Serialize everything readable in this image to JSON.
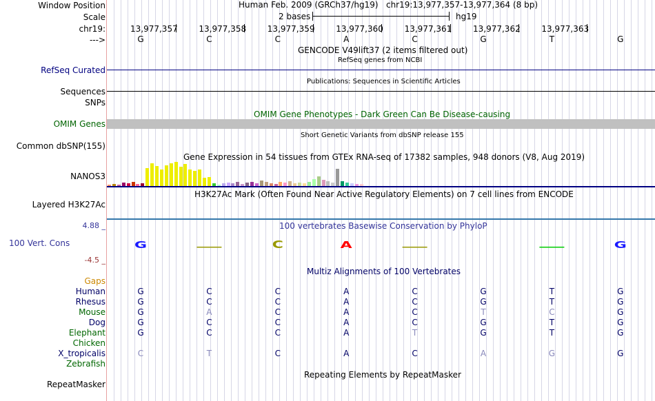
{
  "header": {
    "window_position_label": "Window Position",
    "scale_label": "Scale",
    "chrom_label": "chr19:",
    "strand_label": "--->",
    "assembly": "Human Feb. 2009 (GRCh37/hg19)",
    "position": "chr19:13,977,357-13,977,364 (8 bp)",
    "scale_text": "2 bases",
    "db": "hg19"
  },
  "ruler": {
    "coords": [
      "13,977,357",
      "13,977,358",
      "13,977,359",
      "13,977,360",
      "13,977,361",
      "13,977,362",
      "13,977,363"
    ]
  },
  "sequence": [
    "G",
    "C",
    "C",
    "A",
    "C",
    "G",
    "T",
    "G"
  ],
  "tracks": {
    "gencode": "GENCODE V49lift37 (2 items filtered out)",
    "refseq_title": "RefSeq genes from NCBI",
    "refseq_label": "RefSeq Curated",
    "publications_title": "Publications: Sequences in Scientific Articles",
    "sequences_label": "Sequences",
    "snps_label": "SNPs",
    "omim_title": "OMIM Gene Phenotypes - Dark Green Can Be Disease-causing",
    "omim_label": "OMIM Genes",
    "dbsnp_title": "Short Genetic Variants from dbSNP release 155",
    "dbsnp_label": "Common dbSNP(155)",
    "gtex_title": "Gene Expression in 54 tissues from GTEx RNA-seq of 17382 samples, 948 donors (V8, Aug 2019)",
    "gtex_label": "NANOS3",
    "h3k27ac_title": "H3K27Ac Mark (Often Found Near Active Regulatory Elements) on 7 cell lines from ENCODE",
    "h3k27ac_label": "Layered H3K27Ac",
    "phylop_title": "100 vertebrates Basewise Conservation by PhyloP",
    "phylop_label": "100 Vert. Cons",
    "phylop_max": "4.88 _",
    "phylop_min": "-4.5 _",
    "multiz_title": "Multiz Alignments of 100 Vertebrates",
    "gaps_label": "Gaps",
    "repeat_title": "Repeating Elements by RepeatMasker",
    "repeat_label": "RepeatMasker"
  },
  "gtex_values": [
    2,
    3,
    2,
    5,
    4,
    6,
    3,
    4,
    26,
    33,
    29,
    24,
    30,
    33,
    35,
    28,
    32,
    24,
    22,
    24,
    12,
    13,
    4,
    2,
    4,
    5,
    4,
    6,
    3,
    5,
    6,
    4,
    8,
    6,
    4,
    3,
    6,
    5,
    7,
    4,
    5,
    4,
    6,
    10,
    14,
    9,
    7,
    5,
    25,
    7,
    5,
    4,
    3,
    3
  ],
  "gtex_colors": [
    "#ff9966",
    "#b8860b",
    "#cc6699",
    "#990066",
    "#cc0044",
    "#cc3300",
    "#ff6699",
    "#990033",
    "#eeee00",
    "#eeee00",
    "#eeee00",
    "#eeee00",
    "#eeee00",
    "#eeee00",
    "#eeee00",
    "#eeee00",
    "#eeee00",
    "#eeee00",
    "#eeee00",
    "#eeee00",
    "#eeee00",
    "#eeee00",
    "#33cc33",
    "#aaffcc",
    "#bbaaee",
    "#ccaaff",
    "#aa88cc",
    "#996699",
    "#cc99cc",
    "#886688",
    "#993399",
    "#cc66cc",
    "#aa9977",
    "#c0a080",
    "#dd8866",
    "#cc6699",
    "#ffaa66",
    "#ff99cc",
    "#d2b48c",
    "#eecc99",
    "#ccdd99",
    "#ffdd99",
    "#99ee99",
    "#aaffaa",
    "#aacc88",
    "#dd99bb",
    "#bbbbbb",
    "#cccccc",
    "#999999",
    "#009966",
    "#33cc99",
    "#ccccff",
    "#ee99dd",
    "#ffcccc"
  ],
  "phylop": {
    "bases": [
      "G",
      "",
      "C",
      "A",
      "",
      "",
      "",
      "G"
    ],
    "colors": [
      "#1a1aff",
      "#999900",
      "#999900",
      "#ff0000",
      "#999900",
      "",
      "#00cc00",
      "#1a1aff"
    ],
    "scores": [
      0.6,
      0.1,
      0.7,
      0.6,
      0.1,
      0.0,
      0.2,
      0.6
    ]
  },
  "species": [
    {
      "name": "Human",
      "color": "#000066",
      "seq": [
        "G",
        "C",
        "C",
        "A",
        "C",
        "G",
        "T",
        "G"
      ],
      "match": [
        1,
        1,
        1,
        1,
        1,
        1,
        1,
        1
      ]
    },
    {
      "name": "Rhesus",
      "color": "#000066",
      "seq": [
        "G",
        "C",
        "C",
        "A",
        "C",
        "G",
        "T",
        "G"
      ],
      "match": [
        1,
        1,
        1,
        1,
        1,
        1,
        1,
        1
      ]
    },
    {
      "name": "Mouse",
      "color": "#006600",
      "seq": [
        "G",
        "A",
        "C",
        "A",
        "C",
        "T",
        "C",
        "G"
      ],
      "match": [
        1,
        0,
        1,
        1,
        1,
        0,
        0,
        1
      ]
    },
    {
      "name": "Dog",
      "color": "#000066",
      "seq": [
        "G",
        "C",
        "C",
        "A",
        "C",
        "G",
        "T",
        "G"
      ],
      "match": [
        1,
        1,
        1,
        1,
        1,
        1,
        1,
        1
      ]
    },
    {
      "name": "Elephant",
      "color": "#006600",
      "seq": [
        "G",
        "C",
        "C",
        "A",
        "T",
        "G",
        "T",
        "G"
      ],
      "match": [
        1,
        1,
        1,
        1,
        0,
        1,
        1,
        1
      ]
    },
    {
      "name": "Chicken",
      "color": "#006600",
      "seq": [
        "",
        "",
        "",
        "",
        "",
        "",
        "",
        ""
      ],
      "match": [
        1,
        1,
        1,
        1,
        1,
        1,
        1,
        1
      ]
    },
    {
      "name": "X_tropicalis",
      "color": "#000066",
      "seq": [
        "C",
        "T",
        "C",
        "A",
        "C",
        "A",
        "G",
        "G"
      ],
      "match": [
        0,
        0,
        1,
        1,
        1,
        0,
        0,
        1
      ]
    },
    {
      "name": "Zebrafish",
      "color": "#006600",
      "seq": [
        "",
        "",
        "",
        "",
        "",
        "",
        "",
        ""
      ],
      "match": [
        1,
        1,
        1,
        1,
        1,
        1,
        1,
        1
      ]
    }
  ]
}
